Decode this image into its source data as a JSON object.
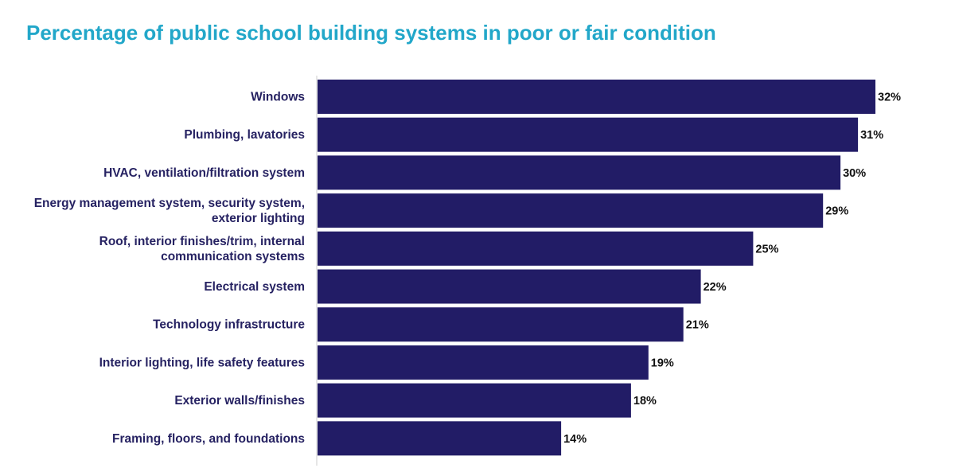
{
  "chart_data": {
    "type": "bar",
    "orientation": "horizontal",
    "title": "Percentage of public school building systems in poor or fair condition",
    "categories": [
      [
        "Windows"
      ],
      [
        "Plumbing, lavatories"
      ],
      [
        "HVAC, ventilation/filtration system"
      ],
      [
        "Energy management system, security system,",
        "exterior lighting"
      ],
      [
        "Roof, interior finishes/trim, internal",
        "communication systems"
      ],
      [
        "Electrical system"
      ],
      [
        "Technology infrastructure"
      ],
      [
        "Interior lighting, life safety features"
      ],
      [
        "Exterior walls/finishes"
      ],
      [
        "Framing, floors, and foundations"
      ]
    ],
    "values": [
      32,
      31,
      30,
      29,
      25,
      22,
      21,
      19,
      18,
      14
    ],
    "value_labels": [
      "32%",
      "31%",
      "30%",
      "29%",
      "25%",
      "22%",
      "21%",
      "19%",
      "18%",
      "14%"
    ],
    "xlim": [
      0,
      32
    ],
    "grid": false,
    "legend": "none",
    "bar_color": "#221C66",
    "axis_color": "#CCCCCC",
    "title_color": "#22A7C9",
    "label_color": "#262262"
  }
}
